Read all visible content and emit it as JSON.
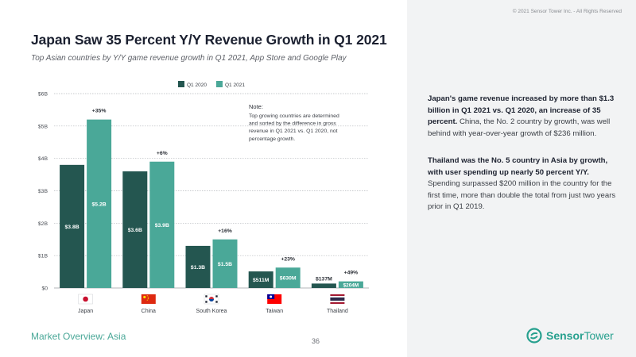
{
  "copyright": "© 2021 Sensor Tower Inc. - All Rights Reserved",
  "title": "Japan Saw 35 Percent Y/Y Revenue Growth in Q1 2021",
  "subtitle": "Top Asian countries by Y/Y game revenue growth in Q1 2021, App Store and Google Play",
  "note": {
    "heading": "Note:",
    "lines": [
      "Top growing countries are determined",
      "and sorted by the difference in gross",
      "revenue in Q1 2021 vs. Q1 2020, not",
      "percentage growth."
    ]
  },
  "colors": {
    "q1_2020": "#245650",
    "q1_2021": "#4aa898",
    "accent": "#27a08e"
  },
  "chart_data": {
    "type": "bar",
    "categories": [
      "Japan",
      "China",
      "South Korea",
      "Taiwan",
      "Thailand"
    ],
    "series": [
      {
        "name": "Q1 2020",
        "values": [
          3.8,
          3.6,
          1.3,
          0.511,
          0.137
        ],
        "labels": [
          "$3.8B",
          "$3.6B",
          "$1.3B",
          "$511M",
          "$137M"
        ]
      },
      {
        "name": "Q1 2021",
        "values": [
          5.2,
          3.9,
          1.5,
          0.63,
          0.204
        ],
        "labels": [
          "$5.2B",
          "$3.9B",
          "$1.5B",
          "$630M",
          "$204M"
        ]
      }
    ],
    "growth_labels": [
      "+35%",
      "+6%",
      "+16%",
      "+23%",
      "+49%"
    ],
    "yticks": [
      "$0",
      "$1B",
      "$2B",
      "$3B",
      "$4B",
      "$5B",
      "$6B"
    ],
    "ylim": [
      0,
      6
    ],
    "grid": true,
    "legend": "top-center",
    "flags": [
      "japan-flag",
      "china-flag",
      "south-korea-flag",
      "taiwan-flag",
      "thailand-flag"
    ]
  },
  "footer": {
    "section": "Market Overview: Asia",
    "page": "36"
  },
  "sidebar": {
    "p1_bold": "Japan's game revenue increased by more than $1.3 billion in Q1 2021 vs. Q1 2020, an increase of 35 percent.",
    "p1_rest": " China, the No. 2 country by growth, was well behind with year-over-year growth of $236 million.",
    "p2_bold": "Thailand was the No. 5 country in Asia by growth, with user spending up nearly 50 percent Y/Y.",
    "p2_rest": " Spending surpassed $200 million in the country for the first time, more than double the total from just two years prior in Q1 2019."
  },
  "brand": {
    "name_1": "Sensor",
    "name_2": "Tower"
  }
}
